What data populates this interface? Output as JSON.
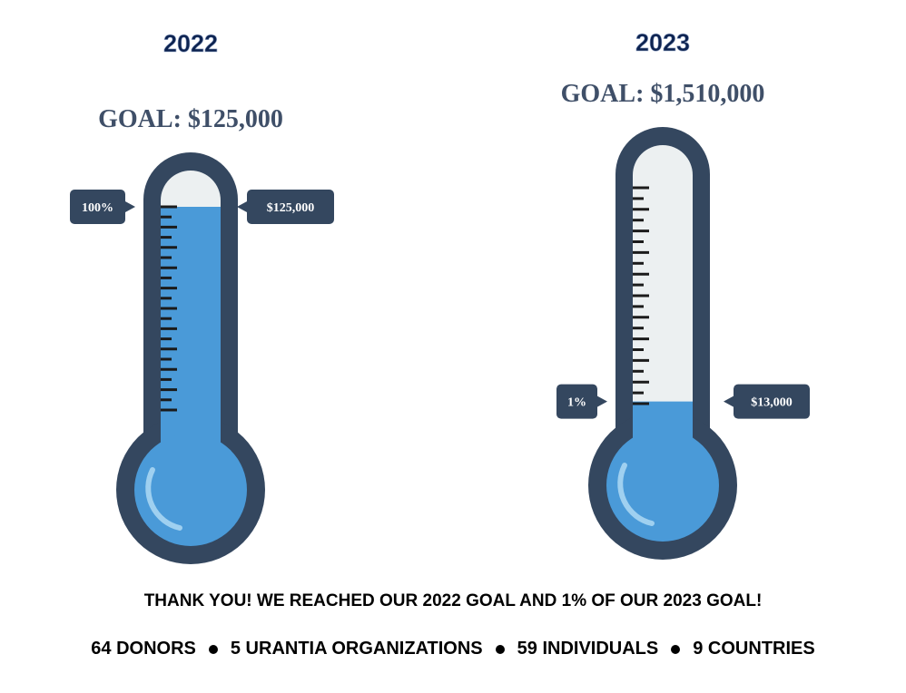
{
  "thermometers": [
    {
      "year": "2022",
      "goal": "GOAL: $125,000",
      "percent": 100,
      "percent_label": "100%",
      "amount": "$125,000"
    },
    {
      "year": "2023",
      "goal": "GOAL: $1,510,000",
      "percent": 1,
      "percent_label": "1%",
      "amount": "$13,000"
    }
  ],
  "message": "THANK YOU! WE REACHED OUR 2022 GOAL AND 1% OF OUR 2023 GOAL!",
  "stats": [
    "64 DONORS",
    "5 URANTIA ORGANIZATIONS",
    "59 INDIVIDUALS",
    "9 COUNTRIES"
  ]
}
